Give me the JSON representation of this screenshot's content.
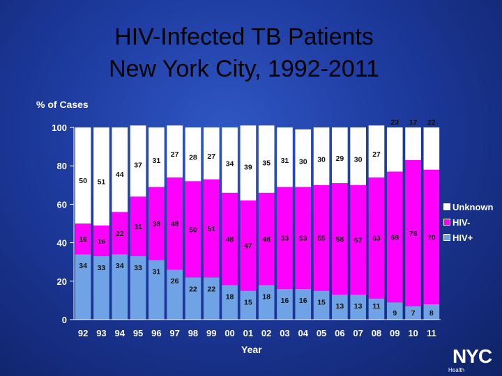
{
  "title_line1": "HIV-Infected TB Patients",
  "title_line2": "New York City, 1992-2011",
  "chart_data": {
    "type": "bar",
    "stacked": true,
    "ylabel": "% of Cases",
    "xlabel": "Year",
    "ylim": [
      0,
      100
    ],
    "yticks": [
      0,
      20,
      40,
      60,
      80,
      100
    ],
    "legend_placement": "right",
    "categories": [
      "92",
      "93",
      "94",
      "95",
      "96",
      "97",
      "98",
      "99",
      "00",
      "01",
      "02",
      "03",
      "04",
      "05",
      "06",
      "07",
      "08",
      "09",
      "10",
      "11"
    ],
    "series": [
      {
        "name": "HIV+",
        "color": "#6fa3e6",
        "values": [
          34,
          33,
          34,
          33,
          31,
          26,
          22,
          22,
          18,
          15,
          18,
          16,
          16,
          15,
          13,
          13,
          11,
          9,
          7,
          8
        ]
      },
      {
        "name": "HIV-",
        "color": "#ff00ff",
        "values": [
          16,
          16,
          22,
          31,
          38,
          48,
          50,
          51,
          48,
          47,
          48,
          53,
          53,
          55,
          58,
          57,
          63,
          68,
          76,
          70
        ]
      },
      {
        "name": "Unknown",
        "color": "#ffffff",
        "values": [
          50,
          51,
          44,
          37,
          31,
          27,
          28,
          27,
          34,
          39,
          35,
          31,
          30,
          30,
          29,
          30,
          27,
          23,
          17,
          22
        ]
      }
    ]
  },
  "logo": {
    "text": "NYC",
    "subtext": "Health"
  }
}
